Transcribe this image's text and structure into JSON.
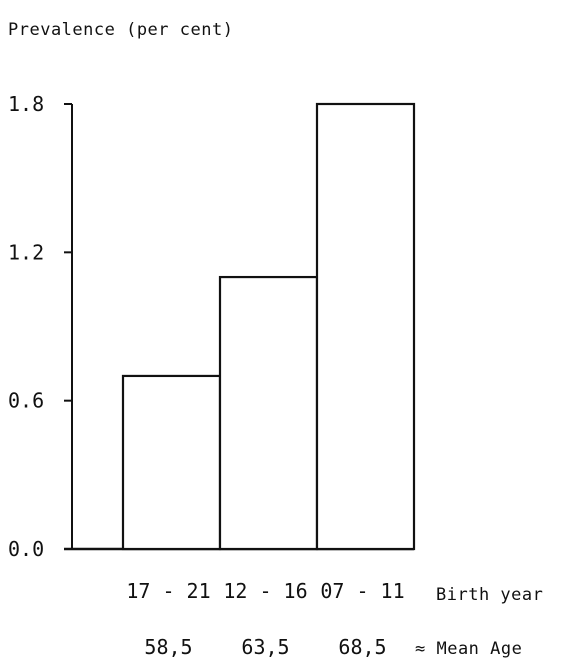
{
  "chart_data": {
    "type": "bar",
    "ylabel": "Prevalence (per cent)",
    "yticks": [
      "0.0",
      "0.6",
      "1.2",
      "1.8"
    ],
    "ylim": [
      0,
      1.8
    ],
    "categories": [
      "17 - 21",
      "12 - 16",
      "07 - 11"
    ],
    "values": [
      0.7,
      1.1,
      1.8
    ],
    "mean_ages": [
      "58,5",
      "63,5",
      "68,5"
    ],
    "xlabel": "Birth year",
    "xlabel_secondary": "≈ Mean Age",
    "grid": false,
    "legend": "none"
  }
}
